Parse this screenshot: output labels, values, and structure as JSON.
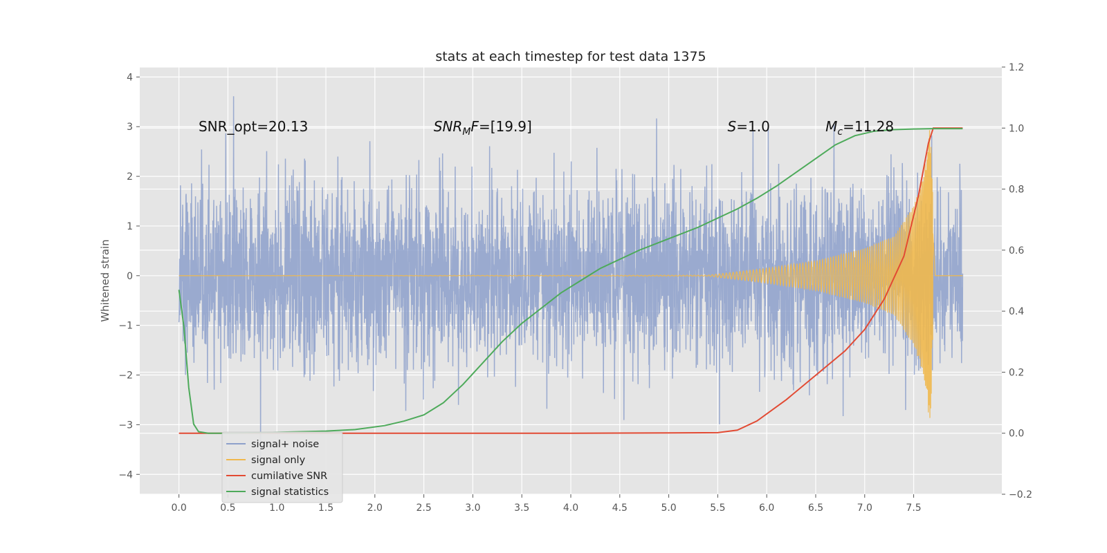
{
  "chart_data": {
    "type": "line",
    "title": "stats at each timestep for test data 1375",
    "ylabel": "Whitened strain",
    "xlabel": "",
    "xlim": [
      -0.4,
      8.4
    ],
    "ylim": [
      -4.4,
      4.2
    ],
    "y2lim": [
      -0.2,
      1.2
    ],
    "grid": true,
    "background": "#e5e5e5",
    "x_ticks": [
      "0.0",
      "0.5",
      "1.0",
      "1.5",
      "2.0",
      "2.5",
      "3.0",
      "3.5",
      "4.0",
      "4.5",
      "5.0",
      "5.5",
      "6.0",
      "6.5",
      "7.0",
      "7.5"
    ],
    "y_ticks": [
      "4",
      "3",
      "2",
      "1",
      "0",
      "−1",
      "−2",
      "−3",
      "−4"
    ],
    "y2_ticks": [
      "1.2",
      "1.0",
      "0.8",
      "0.6",
      "0.4",
      "0.2",
      "0.0",
      "−0.2"
    ],
    "annotations": [
      {
        "text": "SNR_opt=20.13",
        "x": 0.2,
        "y": 3.0
      },
      {
        "text": "SNR_MF=[19.9]",
        "x": 2.6,
        "y": 3.0,
        "sub": "M",
        "parts": [
          "SNR",
          "M",
          "F=[19.9]"
        ]
      },
      {
        "text": "S=1.0",
        "x": 5.6,
        "y": 3.0,
        "parts": [
          "S",
          "=1.0"
        ]
      },
      {
        "text": "M_c=11.28",
        "x": 6.6,
        "y": 3.0,
        "sub": "c",
        "parts": [
          "M",
          "c",
          "=11.28"
        ]
      }
    ],
    "legend": {
      "placement": "lower-left"
    },
    "series": [
      {
        "name": "signal+ noise",
        "color": "#8da0cb",
        "axis": "left",
        "kind": "noise",
        "t_range": [
          0,
          8.0
        ],
        "sigma": 0.9,
        "max_abs": 4.0
      },
      {
        "name": "signal only",
        "color": "#f0b84c",
        "axis": "left",
        "kind": "chirp",
        "t_range": [
          0,
          8.0
        ],
        "envelope": {
          "t": [
            0,
            5.4,
            6.0,
            6.5,
            7.0,
            7.3,
            7.5,
            7.6,
            7.67,
            7.72,
            8.0
          ],
          "a": [
            0,
            0.01,
            0.15,
            0.3,
            0.55,
            0.8,
            1.4,
            2.0,
            3.1,
            0.0,
            0.0
          ]
        }
      },
      {
        "name": "cumilative SNR",
        "color": "#e24a33",
        "axis": "right",
        "x": [
          0,
          1,
          2,
          3,
          4,
          5,
          5.5,
          5.7,
          5.9,
          6.2,
          6.5,
          6.8,
          7.0,
          7.2,
          7.4,
          7.55,
          7.65,
          7.7,
          8.0
        ],
        "y": [
          0.0,
          0.0,
          0.0,
          0.0,
          0.0,
          0.001,
          0.002,
          0.01,
          0.04,
          0.11,
          0.19,
          0.27,
          0.34,
          0.44,
          0.58,
          0.78,
          0.95,
          1.0,
          1.0
        ]
      },
      {
        "name": "signal statistics",
        "color": "#4daa5a",
        "axis": "right",
        "x": [
          0,
          0.05,
          0.1,
          0.15,
          0.2,
          0.3,
          0.5,
          1.0,
          1.5,
          1.8,
          2.1,
          2.3,
          2.5,
          2.7,
          2.9,
          3.1,
          3.3,
          3.5,
          3.7,
          3.9,
          4.1,
          4.3,
          4.5,
          4.7,
          4.9,
          5.1,
          5.3,
          5.5,
          5.7,
          5.9,
          6.1,
          6.3,
          6.5,
          6.7,
          6.9,
          7.1,
          7.3,
          7.5,
          7.7,
          8.0
        ],
        "y": [
          0.47,
          0.35,
          0.15,
          0.03,
          0.005,
          0.0,
          0.0,
          0.003,
          0.007,
          0.012,
          0.025,
          0.04,
          0.06,
          0.1,
          0.16,
          0.23,
          0.3,
          0.36,
          0.41,
          0.46,
          0.5,
          0.54,
          0.57,
          0.6,
          0.625,
          0.65,
          0.675,
          0.705,
          0.735,
          0.77,
          0.81,
          0.855,
          0.9,
          0.945,
          0.975,
          0.99,
          0.995,
          0.997,
          0.998,
          0.998
        ]
      }
    ]
  }
}
